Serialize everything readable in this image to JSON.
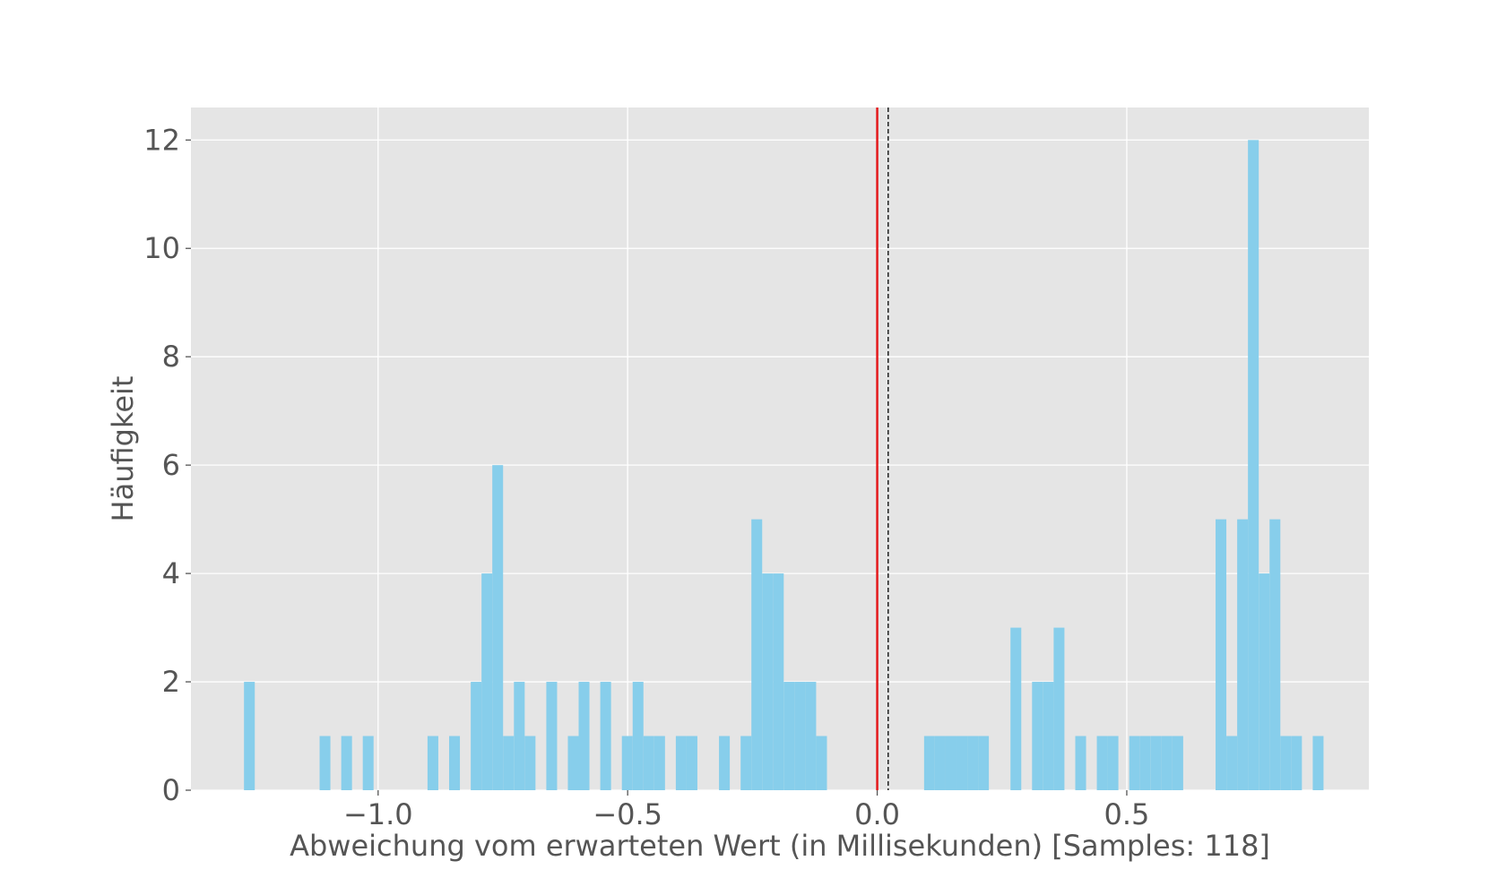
{
  "chart_data": {
    "type": "bar",
    "title": "",
    "xlabel": "Abweichung vom erwarteten Wert (in Millisekunden) [Samples: 118]",
    "ylabel": "Häufigkeit",
    "xlim": [
      -1.375,
      0.985
    ],
    "ylim": [
      0,
      12.6
    ],
    "grid": true,
    "x_ticks": [
      -1.0,
      -0.5,
      0.0,
      0.5
    ],
    "x_tick_labels": [
      "−1.0",
      "−0.5",
      "0.0",
      "0.5"
    ],
    "y_ticks": [
      0,
      2,
      4,
      6,
      8,
      10,
      12
    ],
    "y_tick_labels": [
      "0",
      "2",
      "4",
      "6",
      "8",
      "10",
      "12"
    ],
    "bin_width": 0.0216,
    "bins": [
      {
        "x": -1.2687,
        "count": 2
      },
      {
        "x": -1.1172,
        "count": 1
      },
      {
        "x": -1.0739,
        "count": 1
      },
      {
        "x": -1.0307,
        "count": 1
      },
      {
        "x": -0.901,
        "count": 1
      },
      {
        "x": -0.8577,
        "count": 1
      },
      {
        "x": -0.8144,
        "count": 2
      },
      {
        "x": -0.7928,
        "count": 4
      },
      {
        "x": -0.7712,
        "count": 6
      },
      {
        "x": -0.7496,
        "count": 1
      },
      {
        "x": -0.7279,
        "count": 2
      },
      {
        "x": -0.7063,
        "count": 1
      },
      {
        "x": -0.663,
        "count": 2
      },
      {
        "x": -0.6198,
        "count": 1
      },
      {
        "x": -0.5982,
        "count": 2
      },
      {
        "x": -0.5549,
        "count": 2
      },
      {
        "x": -0.5116,
        "count": 1
      },
      {
        "x": -0.49,
        "count": 2
      },
      {
        "x": -0.4684,
        "count": 1
      },
      {
        "x": -0.4468,
        "count": 1
      },
      {
        "x": -0.4035,
        "count": 1
      },
      {
        "x": -0.3819,
        "count": 1
      },
      {
        "x": -0.317,
        "count": 1
      },
      {
        "x": -0.2737,
        "count": 1
      },
      {
        "x": -0.2521,
        "count": 5
      },
      {
        "x": -0.2305,
        "count": 4
      },
      {
        "x": -0.2089,
        "count": 4
      },
      {
        "x": -0.1872,
        "count": 2
      },
      {
        "x": -0.1656,
        "count": 2
      },
      {
        "x": -0.144,
        "count": 2
      },
      {
        "x": -0.1223,
        "count": 1
      },
      {
        "x": 0.0939,
        "count": 1
      },
      {
        "x": 0.1156,
        "count": 1
      },
      {
        "x": 0.1372,
        "count": 1
      },
      {
        "x": 0.1588,
        "count": 1
      },
      {
        "x": 0.1805,
        "count": 1
      },
      {
        "x": 0.2021,
        "count": 1
      },
      {
        "x": 0.267,
        "count": 3
      },
      {
        "x": 0.3102,
        "count": 2
      },
      {
        "x": 0.3319,
        "count": 2
      },
      {
        "x": 0.3535,
        "count": 3
      },
      {
        "x": 0.3968,
        "count": 1
      },
      {
        "x": 0.44,
        "count": 1
      },
      {
        "x": 0.4616,
        "count": 1
      },
      {
        "x": 0.5049,
        "count": 1
      },
      {
        "x": 0.5265,
        "count": 1
      },
      {
        "x": 0.5482,
        "count": 1
      },
      {
        "x": 0.5698,
        "count": 1
      },
      {
        "x": 0.5914,
        "count": 1
      },
      {
        "x": 0.6779,
        "count": 5
      },
      {
        "x": 0.6996,
        "count": 1
      },
      {
        "x": 0.7212,
        "count": 5
      },
      {
        "x": 0.7428,
        "count": 12
      },
      {
        "x": 0.7645,
        "count": 4
      },
      {
        "x": 0.7861,
        "count": 5
      },
      {
        "x": 0.8077,
        "count": 1
      },
      {
        "x": 0.8293,
        "count": 1
      },
      {
        "x": 0.8726,
        "count": 1
      }
    ],
    "reference_lines": [
      {
        "x": 0.0,
        "color": "#e41a1c",
        "style": "solid"
      },
      {
        "x": 0.022,
        "color": "#000000",
        "style": "dashed"
      }
    ],
    "colors": {
      "bar": "#87ceeb",
      "plot_background": "#e5e5e5",
      "grid": "#ffffff",
      "text": "#555555"
    }
  }
}
